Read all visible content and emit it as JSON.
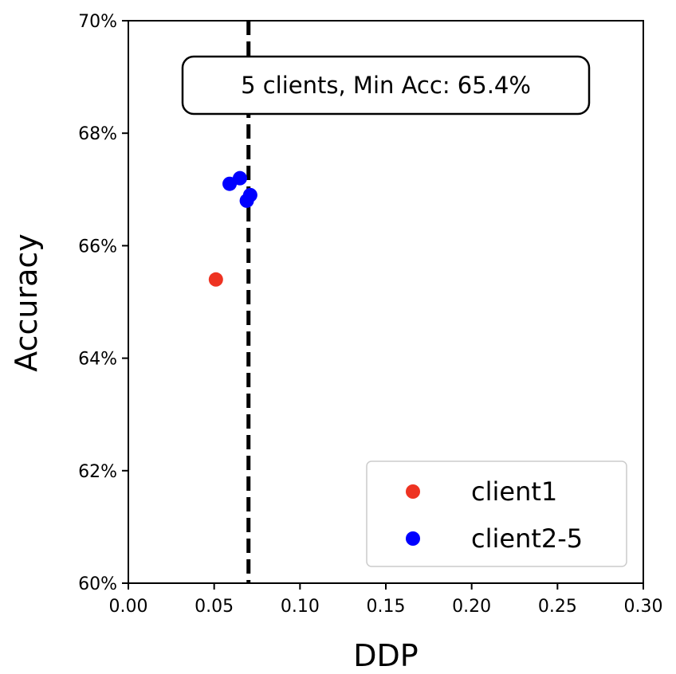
{
  "chart_data": {
    "type": "scatter",
    "title": "",
    "xlabel": "DDP",
    "ylabel": "Accuracy",
    "xlim": [
      0.0,
      0.3
    ],
    "ylim": [
      60,
      70
    ],
    "x_ticks": [
      0.0,
      0.05,
      0.1,
      0.15,
      0.2,
      0.25,
      0.3
    ],
    "x_tick_labels": [
      "0.00",
      "0.05",
      "0.10",
      "0.15",
      "0.20",
      "0.25",
      "0.30"
    ],
    "y_ticks": [
      60,
      62,
      64,
      66,
      68,
      70
    ],
    "y_tick_labels": [
      "60%",
      "62%",
      "64%",
      "66%",
      "68%",
      "70%"
    ],
    "grid": false,
    "legend_position": "bottom-right",
    "series": [
      {
        "name": "client1",
        "color": "#ee3322",
        "points": [
          {
            "x": 0.051,
            "y": 65.4
          }
        ]
      },
      {
        "name": "client2-5",
        "color": "#0000ff",
        "points": [
          {
            "x": 0.059,
            "y": 67.1
          },
          {
            "x": 0.065,
            "y": 67.2
          },
          {
            "x": 0.069,
            "y": 66.8
          },
          {
            "x": 0.071,
            "y": 66.9
          }
        ]
      }
    ],
    "reference_line": {
      "orientation": "vertical",
      "x": 0.07,
      "style": "dashed",
      "color": "#000000"
    },
    "annotation": {
      "text": "5 clients, Min Acc: 65.4%"
    }
  }
}
